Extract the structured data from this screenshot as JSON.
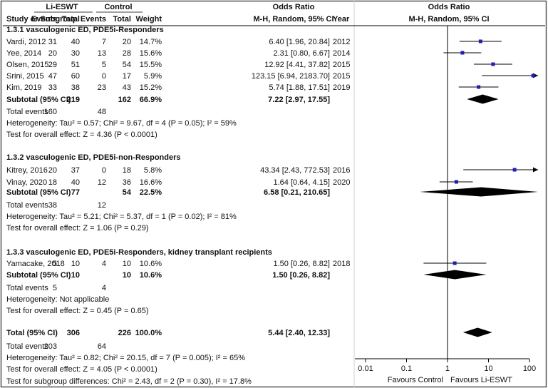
{
  "chart_data": {
    "type": "forest",
    "header": {
      "group1": "Li-ESWT",
      "group2": "Control",
      "or_title": "Odds Ratio",
      "or_method": "M-H, Random, 95% CI",
      "col_study": "Study or Subgroup",
      "col_events1": "Events",
      "col_total1": "Total",
      "col_events2": "Events",
      "col_total2": "Total",
      "col_weight": "Weight",
      "col_year": "Year",
      "plot_title": "Odds Ratio",
      "plot_method": "M-H, Random, 95% CI"
    },
    "subgroups": [
      {
        "title": "1.3.1 vasculogenic ED, PDE5i-Responders",
        "studies": [
          {
            "name": "Vardi, 2012",
            "e1": "31",
            "t1": "40",
            "e2": "7",
            "t2": "20",
            "weight": "14.7%",
            "ci_text": "6.40 [1.96, 20.84]",
            "year": "2012",
            "or": 6.4,
            "lo": 1.96,
            "hi": 20.84,
            "arrow": false
          },
          {
            "name": "Yee, 2014",
            "e1": "20",
            "t1": "30",
            "e2": "13",
            "t2": "28",
            "weight": "15.6%",
            "ci_text": "2.31 [0.80, 6.67]",
            "year": "2014",
            "or": 2.31,
            "lo": 0.8,
            "hi": 6.67,
            "arrow": false
          },
          {
            "name": "Olsen, 2015",
            "e1": "29",
            "t1": "51",
            "e2": "5",
            "t2": "54",
            "weight": "15.5%",
            "ci_text": "12.92 [4.41, 37.82]",
            "year": "2015",
            "or": 12.92,
            "lo": 4.41,
            "hi": 37.82,
            "arrow": false
          },
          {
            "name": "Srini, 2015",
            "e1": "47",
            "t1": "60",
            "e2": "0",
            "t2": "17",
            "weight": "5.9%",
            "ci_text": "123.15 [6.94, 2183.70]",
            "year": "2015",
            "or": 123.15,
            "lo": 6.94,
            "hi": 2183.7,
            "arrow": true
          },
          {
            "name": "Kim, 2019",
            "e1": "33",
            "t1": "38",
            "e2": "23",
            "t2": "43",
            "weight": "15.2%",
            "ci_text": "5.74 [1.88, 17.51]",
            "year": "2019",
            "or": 5.74,
            "lo": 1.88,
            "hi": 17.51,
            "arrow": false
          }
        ],
        "subtotal": {
          "label": "Subtotal (95% CI)",
          "t1": "219",
          "t2": "162",
          "weight": "66.9%",
          "ci_text": "7.22 [2.97, 17.55]",
          "or": 7.22,
          "lo": 2.97,
          "hi": 17.55
        },
        "total_events": {
          "label": "Total events",
          "e1": "160",
          "e2": "48"
        },
        "heterogeneity": "Heterogeneity: Tau² = 0.57; Chi² = 9.67, df = 4 (P = 0.05); I² = 59%",
        "overall": "Test for overall effect: Z = 4.36 (P < 0.0001)"
      },
      {
        "title": "1.3.2 vasculogenic ED, PDE5i-non-Responders",
        "studies": [
          {
            "name": "Kitrey, 2016",
            "e1": "20",
            "t1": "37",
            "e2": "0",
            "t2": "18",
            "weight": "5.8%",
            "ci_text": "43.34 [2.43, 772.53]",
            "year": "2016",
            "or": 43.34,
            "lo": 2.43,
            "hi": 772.53,
            "arrow": true
          },
          {
            "name": "Vinay, 2020",
            "e1": "18",
            "t1": "40",
            "e2": "12",
            "t2": "36",
            "weight": "16.6%",
            "ci_text": "1.64 [0.64, 4.15]",
            "year": "2020",
            "or": 1.64,
            "lo": 0.64,
            "hi": 4.15,
            "arrow": false
          }
        ],
        "subtotal": {
          "label": "Subtotal (95% CI)",
          "t1": "77",
          "t2": "54",
          "weight": "22.5%",
          "ci_text": "6.58 [0.21, 210.65]",
          "or": 6.58,
          "lo": 0.21,
          "hi": 210.65
        },
        "total_events": {
          "label": "Total events",
          "e1": "38",
          "e2": "12"
        },
        "heterogeneity": "Heterogeneity: Tau² = 5.21; Chi² = 5.37, df = 1 (P = 0.02); I² = 81%",
        "overall": "Test for overall effect: Z = 1.06 (P = 0.29)"
      },
      {
        "title": "1.3.3 vasculogenic ED, PDE5i-Responders, kidney transplant recipients",
        "studies": [
          {
            "name": "Yamacake, 2018",
            "e1": "5",
            "t1": "10",
            "e2": "4",
            "t2": "10",
            "weight": "10.6%",
            "ci_text": "1.50 [0.26, 8.82]",
            "year": "2018",
            "or": 1.5,
            "lo": 0.26,
            "hi": 8.82,
            "arrow": false
          }
        ],
        "subtotal": {
          "label": "Subtotal (95% CI)",
          "t1": "10",
          "t2": "10",
          "weight": "10.6%",
          "ci_text": "1.50 [0.26, 8.82]",
          "or": 1.5,
          "lo": 0.26,
          "hi": 8.82
        },
        "total_events": {
          "label": "Total events",
          "e1": "5",
          "e2": "4"
        },
        "heterogeneity": "Heterogeneity: Not applicable",
        "overall": "Test for overall effect: Z = 0.45 (P = 0.65)"
      }
    ],
    "total": {
      "label": "Total (95% CI)",
      "t1": "306",
      "t2": "226",
      "weight": "100.0%",
      "ci_text": "5.44 [2.40, 12.33]",
      "or": 5.44,
      "lo": 2.4,
      "hi": 12.33,
      "events_label": "Total events",
      "e1": "203",
      "e2": "64",
      "heterogeneity": "Heterogeneity: Tau² = 0.82; Chi² = 20.15, df = 7 (P = 0.005); I² = 65%",
      "overall": "Test for overall effect: Z = 4.05 (P < 0.0001)",
      "subgroup_diff": "Test for subgroup differences: Chi² = 2.43, df = 2 (P = 0.30), I² = 17.8%"
    },
    "axis": {
      "scale": "log",
      "min": 0.01,
      "max": 100,
      "ticks": [
        0.01,
        0.1,
        1,
        10,
        100
      ],
      "tick_labels": [
        "0.01",
        "0.1",
        "1",
        "10",
        "100"
      ],
      "favours_left": "Favours Control",
      "favours_right": "Favours Li-ESWT"
    },
    "colors": {
      "marker": "#1f1fb4",
      "diamond": "#000000",
      "line": "#000000",
      "border": "#555555"
    }
  }
}
